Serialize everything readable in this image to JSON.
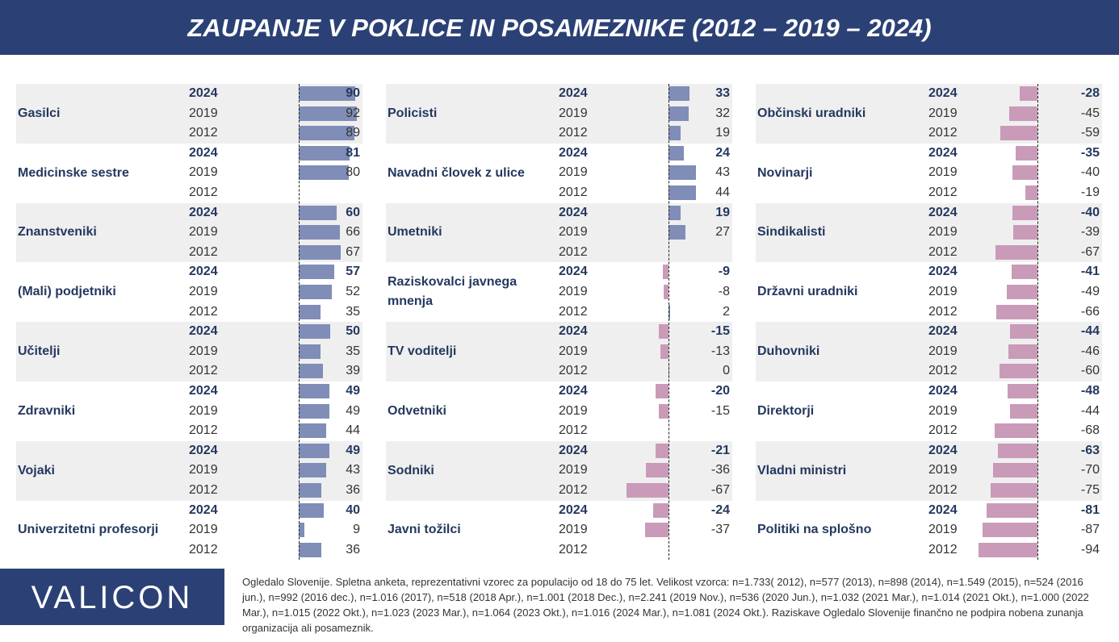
{
  "chart_data": {
    "type": "bar",
    "title": "ZAUPANJE V POKLICE IN POSAMEZNIKE (2012 – 2019 – 2024)",
    "years": [
      "2024",
      "2019",
      "2012"
    ],
    "positive_color": "#7f8db7",
    "negative_color": "#c99bb8",
    "groups": [
      {
        "name": "Gasilci",
        "values": [
          90,
          92,
          89
        ]
      },
      {
        "name": "Medicinske sestre",
        "values": [
          81,
          80,
          null
        ]
      },
      {
        "name": "Znanstveniki",
        "values": [
          60,
          66,
          67
        ]
      },
      {
        "name": "(Mali) podjetniki",
        "values": [
          57,
          52,
          35
        ]
      },
      {
        "name": "Učitelji",
        "values": [
          50,
          35,
          39
        ]
      },
      {
        "name": "Zdravniki",
        "values": [
          49,
          49,
          44
        ]
      },
      {
        "name": "Vojaki",
        "values": [
          49,
          43,
          36
        ]
      },
      {
        "name": "Univerzitetni profesorji",
        "values": [
          40,
          9,
          36
        ]
      },
      {
        "name": "Policisti",
        "values": [
          33,
          32,
          19
        ]
      },
      {
        "name": "Navadni človek z ulice",
        "values": [
          24,
          43,
          44
        ]
      },
      {
        "name": "Umetniki",
        "values": [
          19,
          27,
          null
        ]
      },
      {
        "name": "Raziskovalci javnega mnenja",
        "values": [
          -9,
          -8,
          2
        ]
      },
      {
        "name": "TV voditelji",
        "values": [
          -15,
          -13,
          0
        ]
      },
      {
        "name": "Odvetniki",
        "values": [
          -20,
          -15,
          null
        ]
      },
      {
        "name": "Sodniki",
        "values": [
          -21,
          -36,
          -67
        ]
      },
      {
        "name": "Javni tožilci",
        "values": [
          -24,
          -37,
          null
        ]
      },
      {
        "name": "Občinski uradniki",
        "values": [
          -28,
          -45,
          -59
        ]
      },
      {
        "name": "Novinarji",
        "values": [
          -35,
          -40,
          -19
        ]
      },
      {
        "name": "Sindikalisti",
        "values": [
          -40,
          -39,
          -67
        ]
      },
      {
        "name": "Državni uradniki",
        "values": [
          -41,
          -49,
          -66
        ]
      },
      {
        "name": "Duhovniki",
        "values": [
          -44,
          -46,
          -60
        ]
      },
      {
        "name": "Direktorji",
        "values": [
          -48,
          -44,
          -68
        ]
      },
      {
        "name": "Vladni ministri",
        "values": [
          -63,
          -70,
          -75
        ]
      },
      {
        "name": "Politiki na splošno",
        "values": [
          -81,
          -87,
          -94
        ]
      }
    ]
  },
  "footer": {
    "logo": "VALICON",
    "note": "Ogledalo Slovenije. Spletna anketa, reprezentativni vzorec za populacijo od 18 do 75 let. Velikost vzorca: n=1.733( 2012), n=577 (2013), n=898 (2014), n=1.549 (2015), n=524 (2016 jun.), n=992 (2016 dec.), n=1.016 (2017), n=518 (2018 Apr.), n=1.001 (2018 Dec.), n=2.241 (2019 Nov.), n=536 (2020 Jun.), n=1.032 (2021 Mar.), n=1.014 (2021 Okt.), n=1.000 (2022 Mar.), n=1.015 (2022 Okt.), n=1.023 (2023 Mar.), n=1.064 (2023 Okt.), n=1.016 (2024 Mar.), n=1.081 (2024 Okt.). Raziskave Ogledalo Slovenije finančno ne podpira nobena zunanja organizacija ali posameznik."
  }
}
